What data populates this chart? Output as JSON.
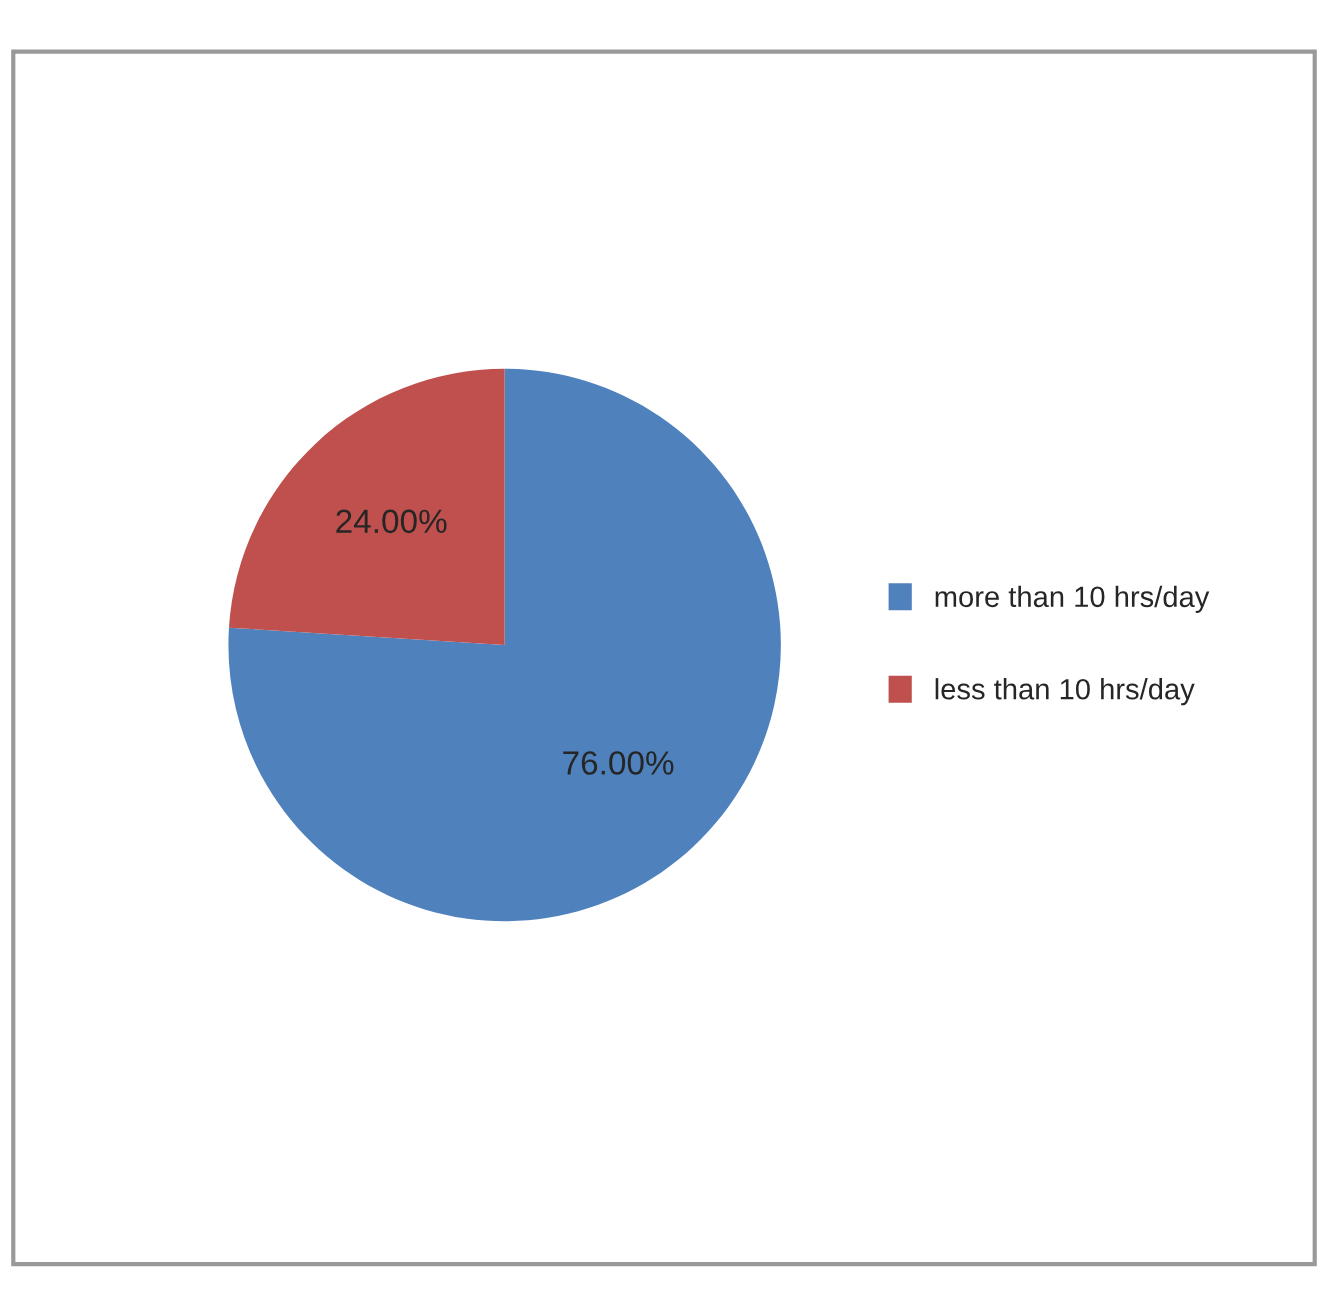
{
  "chart_data": {
    "type": "pie",
    "categories": [
      "more than 10 hrs/day",
      "less than 10 hrs/day"
    ],
    "values": [
      76,
      24
    ],
    "colors": [
      "#4f81bd",
      "#c0504d"
    ],
    "value_labels": [
      "76.00%",
      "24.00%"
    ],
    "legend": "right"
  }
}
